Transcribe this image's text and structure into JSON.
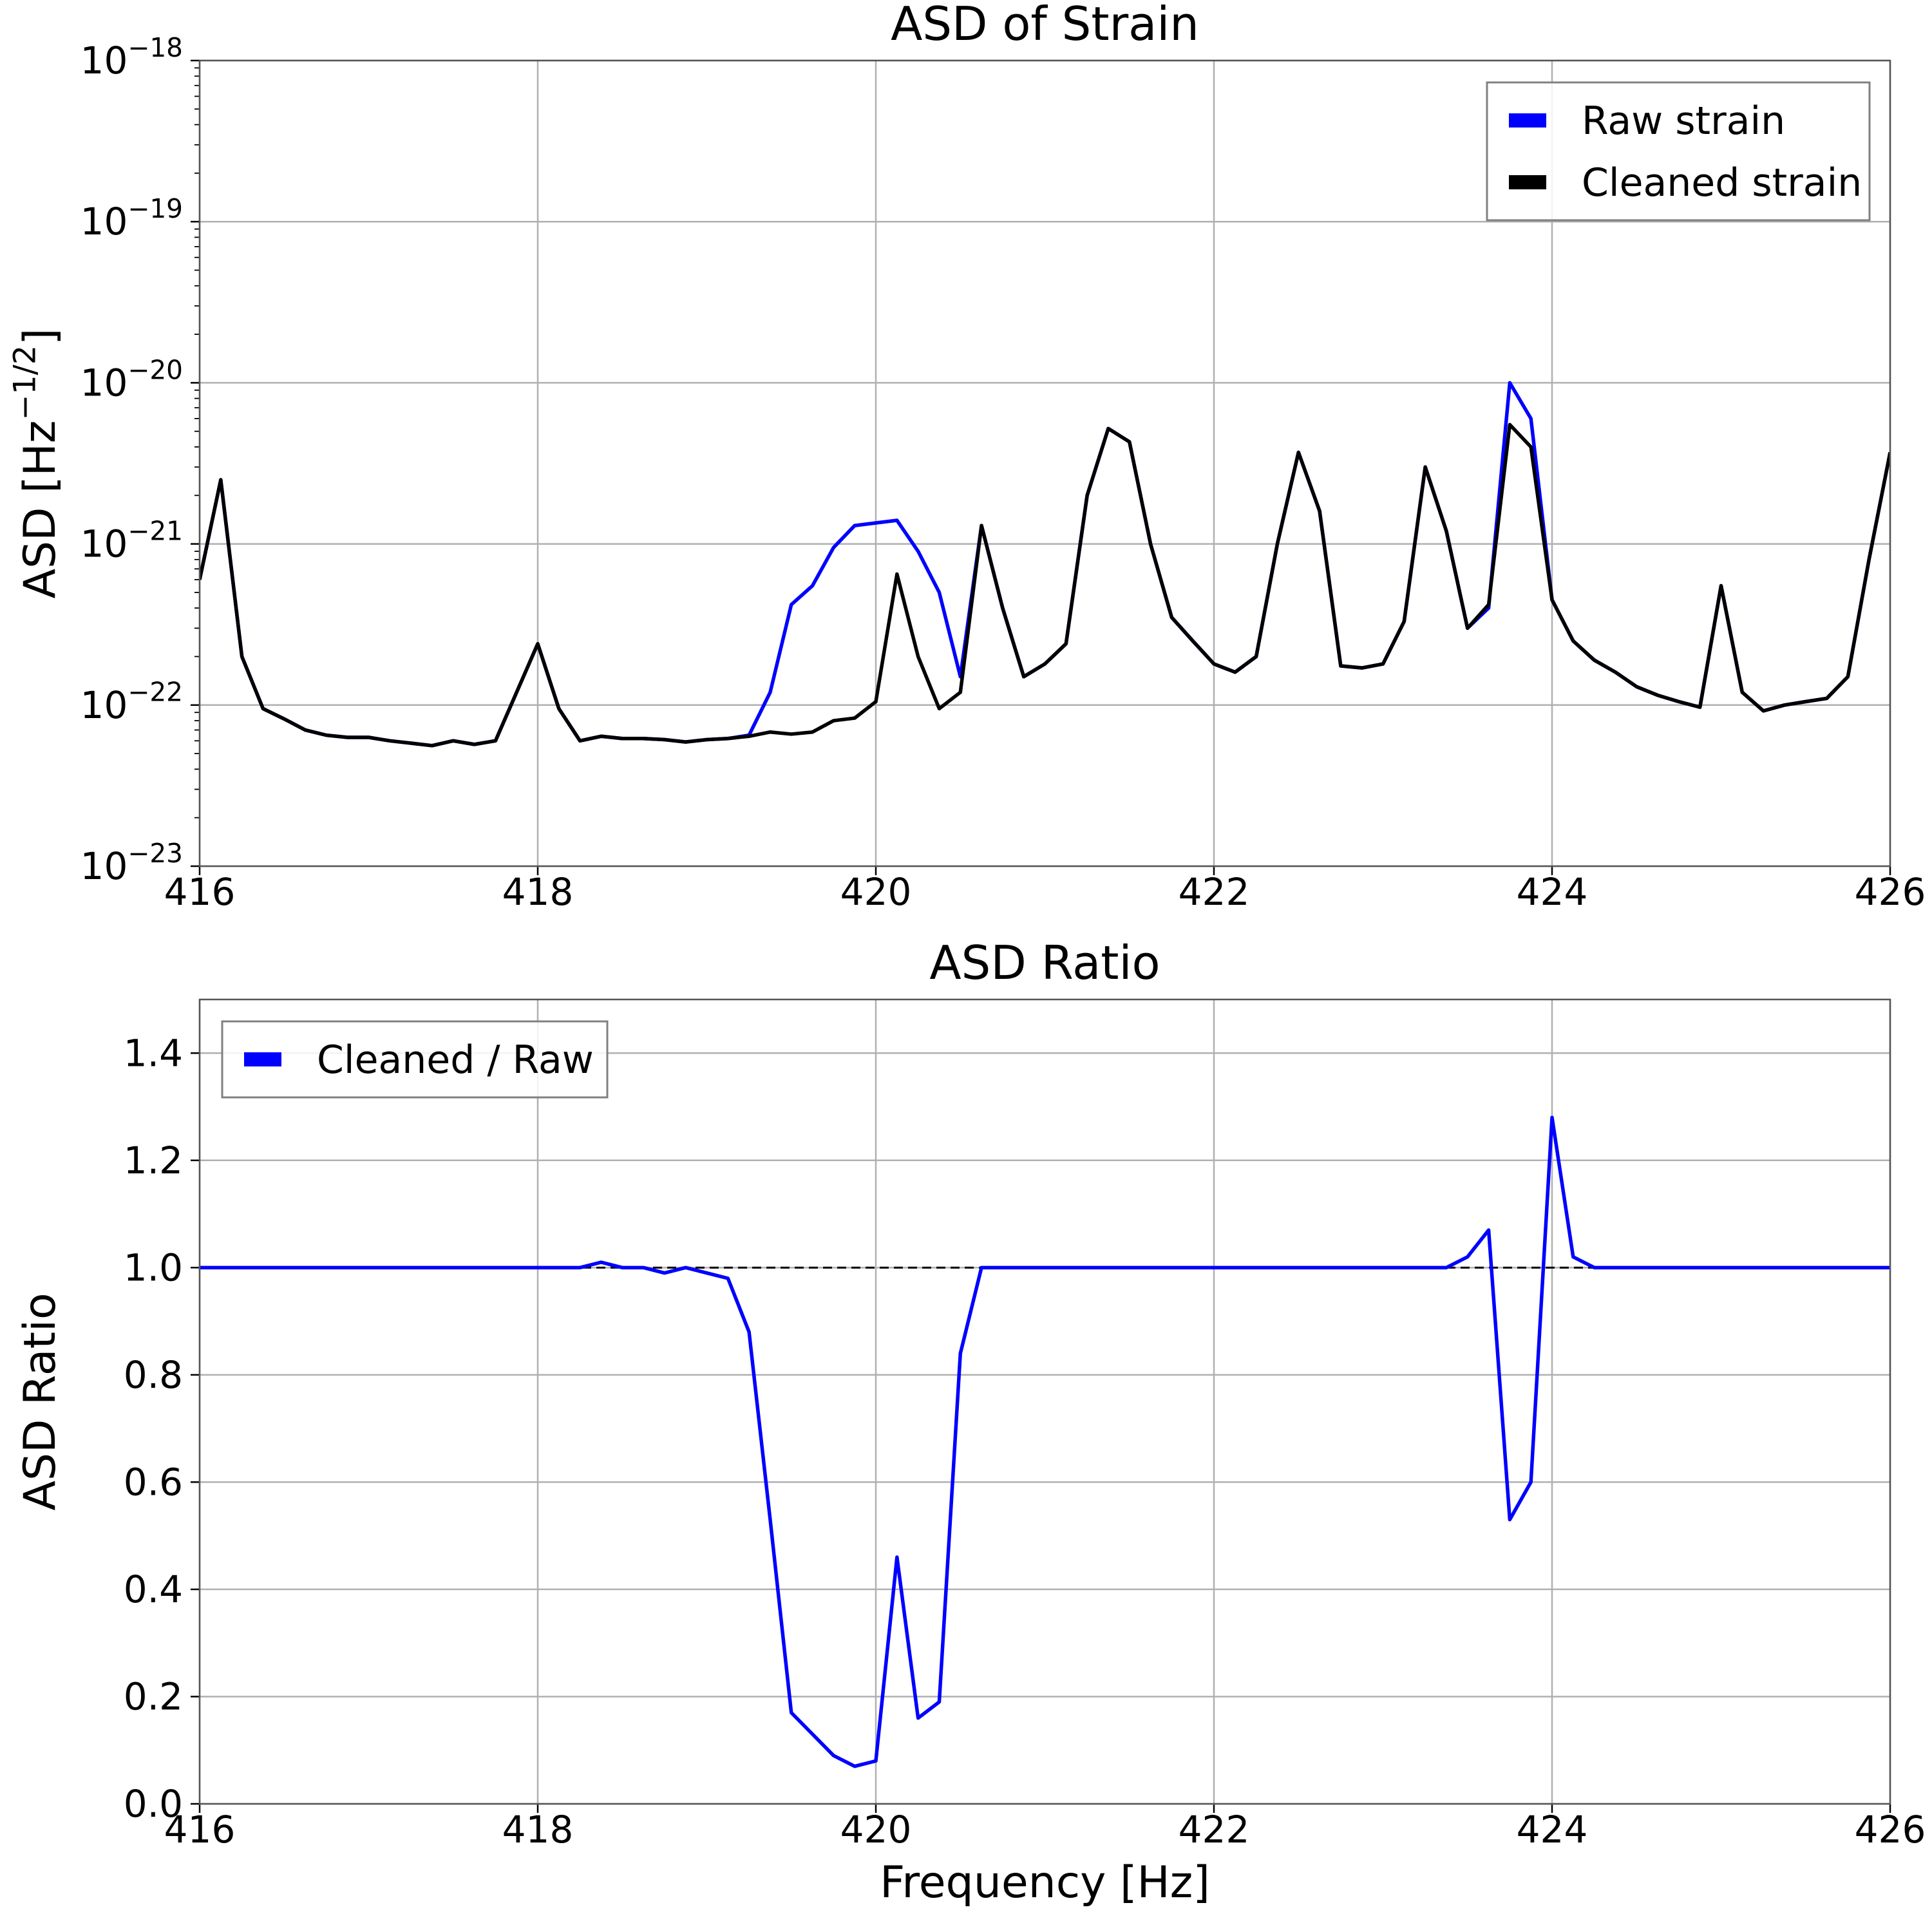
{
  "chart_data": [
    {
      "type": "line",
      "title": "ASD of Strain",
      "ylabel": "ASD [Hz^{−1/2}]",
      "log_y": true,
      "grid": true,
      "legend": "upper right",
      "x": [
        416,
        416.125,
        416.25,
        416.375,
        416.5,
        416.625,
        416.75,
        416.875,
        417,
        417.125,
        417.25,
        417.375,
        417.5,
        417.625,
        417.75,
        417.875,
        418,
        418.125,
        418.25,
        418.375,
        418.5,
        418.625,
        418.75,
        418.875,
        419,
        419.125,
        419.25,
        419.375,
        419.5,
        419.625,
        419.75,
        419.875,
        420,
        420.125,
        420.25,
        420.375,
        420.5,
        420.625,
        420.75,
        420.875,
        421,
        421.125,
        421.25,
        421.375,
        421.5,
        421.625,
        421.75,
        421.875,
        422,
        422.125,
        422.25,
        422.375,
        422.5,
        422.625,
        422.75,
        422.875,
        423,
        423.125,
        423.25,
        423.375,
        423.5,
        423.625,
        423.75,
        423.875,
        424,
        424.125,
        424.25,
        424.375,
        424.5,
        424.625,
        424.75,
        424.875,
        425,
        425.125,
        425.25,
        425.375,
        425.5,
        425.625,
        425.75,
        425.875,
        426
      ],
      "series": [
        {
          "name": "Raw strain",
          "color": "#0000ff",
          "values": [
            6e-22,
            2.5e-21,
            2e-22,
            9.5e-23,
            8.2e-23,
            7e-23,
            6.5e-23,
            6.3e-23,
            6.3e-23,
            6e-23,
            5.8e-23,
            5.6e-23,
            6e-23,
            5.7e-23,
            6e-23,
            1.2e-22,
            2.4e-22,
            9.5e-23,
            6e-23,
            6.4e-23,
            6.2e-23,
            6.2e-23,
            6.1e-23,
            5.9e-23,
            6.1e-23,
            6.2e-23,
            6.5e-23,
            1.2e-22,
            4.2e-22,
            5.5e-22,
            9.5e-22,
            1.3e-21,
            1.35e-21,
            1.4e-21,
            9e-22,
            5e-22,
            1.5e-22,
            1.3e-21,
            4e-22,
            1.5e-22,
            1.8e-22,
            2.4e-22,
            2e-21,
            5.2e-21,
            4.3e-21,
            1e-21,
            3.5e-22,
            2.5e-22,
            1.8e-22,
            1.6e-22,
            2e-22,
            1e-21,
            3.7e-21,
            1.6e-21,
            1.75e-22,
            1.7e-22,
            1.8e-22,
            3.3e-22,
            3e-21,
            1.2e-21,
            3e-22,
            4e-22,
            1e-20,
            6e-21,
            4.5e-22,
            2.5e-22,
            1.9e-22,
            1.6e-22,
            1.3e-22,
            1.15e-22,
            1.05e-22,
            9.7e-23,
            5.5e-22,
            1.2e-22,
            9.2e-23,
            1e-22,
            1.05e-22,
            1.1e-22,
            1.5e-22,
            8e-22,
            3.7e-21
          ]
        },
        {
          "name": "Cleaned strain",
          "color": "#000000",
          "values": [
            6e-22,
            2.5e-21,
            2e-22,
            9.5e-23,
            8.2e-23,
            7e-23,
            6.5e-23,
            6.3e-23,
            6.3e-23,
            6e-23,
            5.8e-23,
            5.6e-23,
            6e-23,
            5.7e-23,
            6e-23,
            1.2e-22,
            2.4e-22,
            9.5e-23,
            6e-23,
            6.4e-23,
            6.2e-23,
            6.2e-23,
            6.1e-23,
            5.9e-23,
            6.1e-23,
            6.2e-23,
            6.4e-23,
            6.8e-23,
            6.6e-23,
            6.8e-23,
            8e-23,
            8.3e-23,
            1.05e-22,
            6.5e-22,
            2e-22,
            9.5e-23,
            1.2e-22,
            1.3e-21,
            4e-22,
            1.5e-22,
            1.8e-22,
            2.4e-22,
            2e-21,
            5.2e-21,
            4.3e-21,
            1e-21,
            3.5e-22,
            2.5e-22,
            1.8e-22,
            1.6e-22,
            2e-22,
            1e-21,
            3.7e-21,
            1.6e-21,
            1.75e-22,
            1.7e-22,
            1.8e-22,
            3.3e-22,
            3e-21,
            1.2e-21,
            3e-22,
            4.2e-22,
            5.5e-21,
            4e-21,
            4.5e-22,
            2.5e-22,
            1.9e-22,
            1.6e-22,
            1.3e-22,
            1.15e-22,
            1.05e-22,
            9.7e-23,
            5.5e-22,
            1.2e-22,
            9.2e-23,
            1e-22,
            1.05e-22,
            1.1e-22,
            1.5e-22,
            8e-22,
            3.7e-21
          ]
        }
      ],
      "xlim": [
        416,
        426
      ],
      "xticks": [
        416,
        418,
        420,
        422,
        424,
        426
      ],
      "ylim": [
        1e-23,
        1e-18
      ],
      "yticks": [
        {
          "value": 1e-23,
          "label": "10^{−23}"
        },
        {
          "value": 1e-22,
          "label": "10^{−22}"
        },
        {
          "value": 1e-21,
          "label": "10^{−21}"
        },
        {
          "value": 1e-20,
          "label": "10^{−20}"
        },
        {
          "value": 1e-19,
          "label": "10^{−19}"
        },
        {
          "value": 1e-18,
          "label": "10^{−18}"
        }
      ]
    },
    {
      "type": "line",
      "title": "ASD Ratio",
      "ylabel": "ASD Ratio",
      "xlabel": "Frequency [Hz]",
      "log_y": false,
      "grid": true,
      "legend": "upper left",
      "hline": 1,
      "x": [
        416,
        416.125,
        416.25,
        416.375,
        416.5,
        416.625,
        416.75,
        416.875,
        417,
        417.125,
        417.25,
        417.375,
        417.5,
        417.625,
        417.75,
        417.875,
        418,
        418.125,
        418.25,
        418.375,
        418.5,
        418.625,
        418.75,
        418.875,
        419,
        419.125,
        419.25,
        419.375,
        419.5,
        419.625,
        419.75,
        419.875,
        420,
        420.125,
        420.25,
        420.375,
        420.5,
        420.625,
        420.75,
        420.875,
        421,
        421.125,
        421.25,
        421.375,
        421.5,
        421.625,
        421.75,
        421.875,
        422,
        422.125,
        422.25,
        422.375,
        422.5,
        422.625,
        422.75,
        422.875,
        423,
        423.125,
        423.25,
        423.375,
        423.5,
        423.625,
        423.75,
        423.875,
        424,
        424.125,
        424.25,
        424.375,
        424.5,
        424.625,
        424.75,
        424.875,
        425,
        425.125,
        425.25,
        425.375,
        425.5,
        425.625,
        425.75,
        425.875,
        426
      ],
      "series": [
        {
          "name": "Cleaned / Raw",
          "color": "#0000ff",
          "values": [
            1,
            1,
            1,
            1,
            1,
            1,
            1,
            1,
            1,
            1,
            1,
            1,
            1,
            1,
            1,
            1,
            1,
            1,
            1,
            1.01,
            1,
            1,
            0.99,
            1,
            0.99,
            0.98,
            0.88,
            0.53,
            0.17,
            0.13,
            0.09,
            0.07,
            0.08,
            0.46,
            0.16,
            0.19,
            0.84,
            1,
            1,
            1,
            1,
            1,
            1,
            1,
            1,
            1,
            1,
            1,
            1,
            1,
            1,
            1,
            1,
            1,
            1,
            1,
            1,
            1,
            1,
            1,
            1.02,
            1.07,
            0.53,
            0.6,
            1.28,
            1.02,
            1,
            1,
            1,
            1,
            1,
            1,
            1,
            1,
            1,
            1,
            1,
            1,
            1,
            1,
            1
          ]
        }
      ],
      "xlim": [
        416,
        426
      ],
      "xticks": [
        416,
        418,
        420,
        422,
        424,
        426
      ],
      "ylim": [
        0,
        1.5
      ],
      "yticks": [
        {
          "value": 0,
          "label": "0.0"
        },
        0.2,
        0.4,
        0.6,
        0.8,
        {
          "value": 1,
          "label": "1.0"
        },
        1.2,
        1.4
      ]
    }
  ]
}
